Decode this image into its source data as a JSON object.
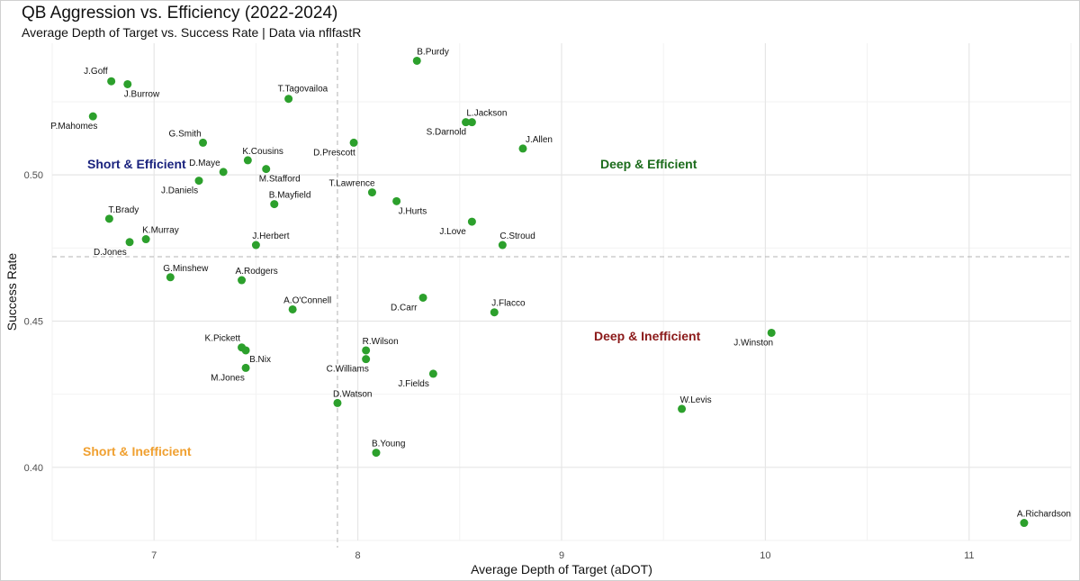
{
  "title": "QB Aggression vs. Efficiency (2022-2024)",
  "subtitle": "Average Depth of Target vs. Success Rate | Data via nflfastR",
  "chart_data": {
    "type": "scatter",
    "xlabel": "Average Depth of Target (aDOT)",
    "ylabel": "Success Rate",
    "xlim": [
      6.5,
      11.5
    ],
    "ylim": [
      0.375,
      0.545
    ],
    "xticks": [
      {
        "value": 7,
        "label": "7"
      },
      {
        "value": 8,
        "label": "8"
      },
      {
        "value": 9,
        "label": "9"
      },
      {
        "value": 10,
        "label": "10"
      },
      {
        "value": 11,
        "label": "11"
      }
    ],
    "yticks": [
      {
        "value": 0.4,
        "label": "0.40"
      },
      {
        "value": 0.45,
        "label": "0.45"
      },
      {
        "value": 0.5,
        "label": "0.50"
      }
    ],
    "grid": true,
    "point_color": "#2ca02c",
    "reference_lines": {
      "x": 7.9,
      "y": 0.472
    },
    "points": [
      {
        "name": "B.Purdy",
        "x": 8.29,
        "y": 0.539
      },
      {
        "name": "J.Goff",
        "x": 6.79,
        "y": 0.532
      },
      {
        "name": "J.Burrow",
        "x": 6.87,
        "y": 0.531
      },
      {
        "name": "T.Tagovailoa",
        "x": 7.66,
        "y": 0.526
      },
      {
        "name": "P.Mahomes",
        "x": 6.7,
        "y": 0.52
      },
      {
        "name": "L.Jackson",
        "x": 8.56,
        "y": 0.518
      },
      {
        "name": "S.Darnold",
        "x": 8.53,
        "y": 0.518
      },
      {
        "name": "G.Smith",
        "x": 7.24,
        "y": 0.511
      },
      {
        "name": "D.Prescott",
        "x": 7.98,
        "y": 0.511
      },
      {
        "name": "J.Allen",
        "x": 8.81,
        "y": 0.509
      },
      {
        "name": "K.Cousins",
        "x": 7.46,
        "y": 0.505
      },
      {
        "name": "M.Stafford",
        "x": 7.55,
        "y": 0.502
      },
      {
        "name": "D.Maye",
        "x": 7.34,
        "y": 0.501
      },
      {
        "name": "J.Daniels",
        "x": 7.22,
        "y": 0.498
      },
      {
        "name": "T.Lawrence",
        "x": 8.07,
        "y": 0.494
      },
      {
        "name": "J.Hurts",
        "x": 8.19,
        "y": 0.491
      },
      {
        "name": "B.Mayfield",
        "x": 7.59,
        "y": 0.49
      },
      {
        "name": "T.Brady",
        "x": 6.78,
        "y": 0.485
      },
      {
        "name": "J.Love",
        "x": 8.56,
        "y": 0.484
      },
      {
        "name": "K.Murray",
        "x": 6.96,
        "y": 0.478
      },
      {
        "name": "D.Jones",
        "x": 6.88,
        "y": 0.477
      },
      {
        "name": "J.Herbert",
        "x": 7.5,
        "y": 0.476
      },
      {
        "name": "C.Stroud",
        "x": 8.71,
        "y": 0.476
      },
      {
        "name": "G.Minshew",
        "x": 7.08,
        "y": 0.465
      },
      {
        "name": "A.Rodgers",
        "x": 7.43,
        "y": 0.464
      },
      {
        "name": "D.Carr",
        "x": 8.32,
        "y": 0.458
      },
      {
        "name": "A.O'Connell",
        "x": 7.68,
        "y": 0.454
      },
      {
        "name": "J.Flacco",
        "x": 8.67,
        "y": 0.453
      },
      {
        "name": "J.Winston",
        "x": 10.03,
        "y": 0.446
      },
      {
        "name": "K.Pickett",
        "x": 7.43,
        "y": 0.441
      },
      {
        "name": "B.Nix",
        "x": 7.45,
        "y": 0.44
      },
      {
        "name": "R.Wilson",
        "x": 8.04,
        "y": 0.44
      },
      {
        "name": "C.Williams",
        "x": 8.04,
        "y": 0.437
      },
      {
        "name": "M.Jones",
        "x": 7.45,
        "y": 0.434
      },
      {
        "name": "J.Fields",
        "x": 8.37,
        "y": 0.432
      },
      {
        "name": "D.Watson",
        "x": 7.9,
        "y": 0.422
      },
      {
        "name": "W.Levis",
        "x": 9.59,
        "y": 0.42
      },
      {
        "name": "B.Young",
        "x": 8.09,
        "y": 0.405
      },
      {
        "name": "A.Richardson",
        "x": 11.27,
        "y": 0.381
      }
    ],
    "quadrant_labels": [
      {
        "text": "Short & Efficient",
        "color": "#1a237e"
      },
      {
        "text": "Deep & Efficient",
        "color": "#1b6b1b"
      },
      {
        "text": "Deep & Inefficient",
        "color": "#8b1a1a"
      },
      {
        "text": "Short & Inefficient",
        "color": "#f0a030"
      }
    ]
  }
}
